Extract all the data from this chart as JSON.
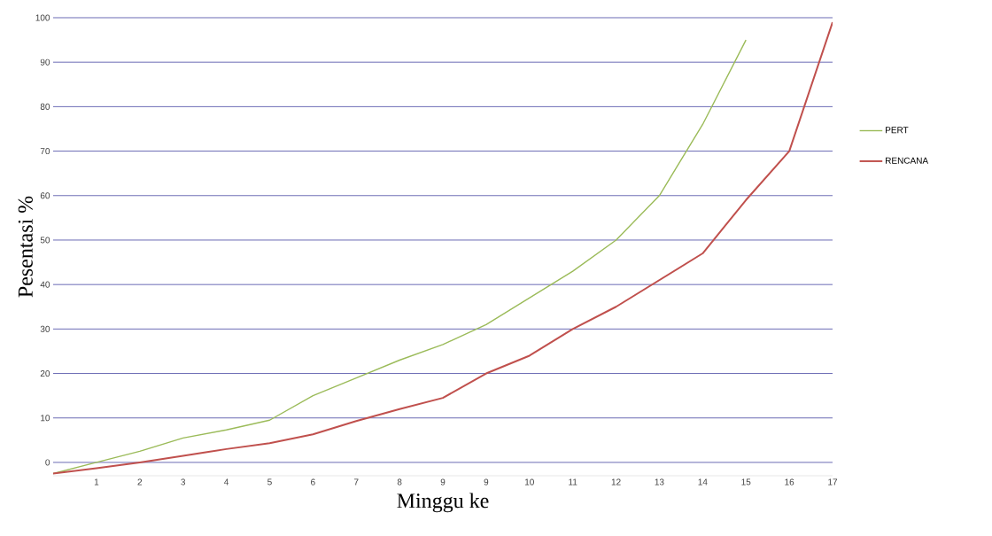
{
  "chart_data": {
    "type": "line",
    "xlabel": "Minggu ke",
    "ylabel": "Pesentasi %",
    "categories": [
      null,
      "1",
      "2",
      "3",
      "4",
      "5",
      "6",
      "7",
      "8",
      "9",
      "9",
      "10",
      "11",
      "12",
      "13",
      "14",
      "15",
      "16",
      "17"
    ],
    "series": [
      {
        "name": "PERT",
        "color": "#9bbb59",
        "values": [
          -2.5,
          0,
          2.5,
          5.5,
          7.3,
          9.5,
          15,
          19,
          23,
          26.5,
          31,
          37,
          43,
          50,
          60,
          76,
          95,
          null,
          null
        ]
      },
      {
        "name": "RENCANA",
        "color": "#c0504d",
        "values": [
          -2.5,
          -1.3,
          0,
          1.5,
          3,
          4.3,
          6.3,
          9.3,
          12,
          14.5,
          20,
          24,
          30,
          35,
          41,
          47,
          59,
          70,
          99
        ]
      }
    ],
    "ylim": [
      -3,
      100
    ],
    "yticks": [
      0,
      10,
      20,
      30,
      40,
      50,
      60,
      70,
      80,
      90,
      100
    ],
    "grid": "y",
    "legend": "right",
    "marker": "none",
    "line_style": "solid"
  }
}
